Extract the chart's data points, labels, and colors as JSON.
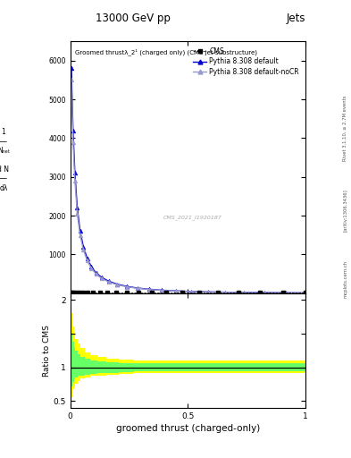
{
  "title_top": "13000 GeV pp",
  "title_right": "Jets",
  "cms_label": "CMS",
  "pythia_default_label": "Pythia 8.308 default",
  "pythia_nocr_label": "Pythia 8.308 default-noCR",
  "xlabel": "groomed thrust (charged-only)",
  "ylabel_ratio": "Ratio to CMS",
  "watermark": "CMS_2021_I1920187",
  "rivet_label": "Rivet 3.1.10, ≥ 2.7M events",
  "arxiv_label": "[arXiv:1306.3436]",
  "mcplots_label": "mcplots.cern.ch",
  "x_main": [
    0.005,
    0.012,
    0.02,
    0.03,
    0.042,
    0.056,
    0.072,
    0.09,
    0.11,
    0.135,
    0.165,
    0.2,
    0.24,
    0.285,
    0.335,
    0.39,
    0.45,
    0.515,
    0.585,
    0.66,
    0.74,
    0.825,
    0.915,
    1.0
  ],
  "y_pythia_default": [
    5800,
    4200,
    3100,
    2200,
    1600,
    1200,
    900,
    680,
    520,
    400,
    305,
    230,
    175,
    132,
    100,
    76,
    57,
    43,
    32,
    24,
    18,
    13,
    9,
    6
  ],
  "y_pythia_nocr": [
    5500,
    3900,
    2900,
    2050,
    1500,
    1120,
    840,
    640,
    490,
    375,
    285,
    215,
    164,
    124,
    94,
    71,
    54,
    40,
    30,
    22,
    17,
    12,
    8,
    5
  ],
  "color_default": "#0000cc",
  "color_nocr": "#9999cc",
  "color_cms": "#000000",
  "color_yellow": "#ffff00",
  "color_green": "#66ff66",
  "xlim": [
    0,
    1.0
  ],
  "ylim_main": [
    0,
    6500
  ],
  "ylim_ratio": [
    0.4,
    2.1
  ],
  "ratio_bin_edges": [
    0.0,
    0.005,
    0.01,
    0.015,
    0.022,
    0.032,
    0.045,
    0.062,
    0.085,
    0.115,
    0.155,
    0.205,
    0.27,
    0.35,
    0.45,
    0.57,
    0.71,
    0.875,
    1.0
  ],
  "ratio_yellow_lo": [
    0.42,
    0.55,
    0.68,
    0.72,
    0.76,
    0.8,
    0.83,
    0.85,
    0.87,
    0.88,
    0.89,
    0.9,
    0.91,
    0.92,
    0.92,
    0.92,
    0.92,
    0.92
  ],
  "ratio_yellow_hi": [
    2.1,
    1.8,
    1.6,
    1.5,
    1.42,
    1.35,
    1.28,
    1.22,
    1.18,
    1.15,
    1.13,
    1.11,
    1.1,
    1.1,
    1.1,
    1.1,
    1.1,
    1.1
  ],
  "ratio_green_lo": [
    0.65,
    0.72,
    0.78,
    0.82,
    0.85,
    0.87,
    0.88,
    0.89,
    0.9,
    0.91,
    0.92,
    0.93,
    0.94,
    0.94,
    0.94,
    0.94,
    0.94,
    0.94
  ],
  "ratio_green_hi": [
    1.7,
    1.5,
    1.38,
    1.3,
    1.24,
    1.19,
    1.15,
    1.12,
    1.1,
    1.08,
    1.07,
    1.06,
    1.06,
    1.06,
    1.06,
    1.06,
    1.06,
    1.06
  ]
}
